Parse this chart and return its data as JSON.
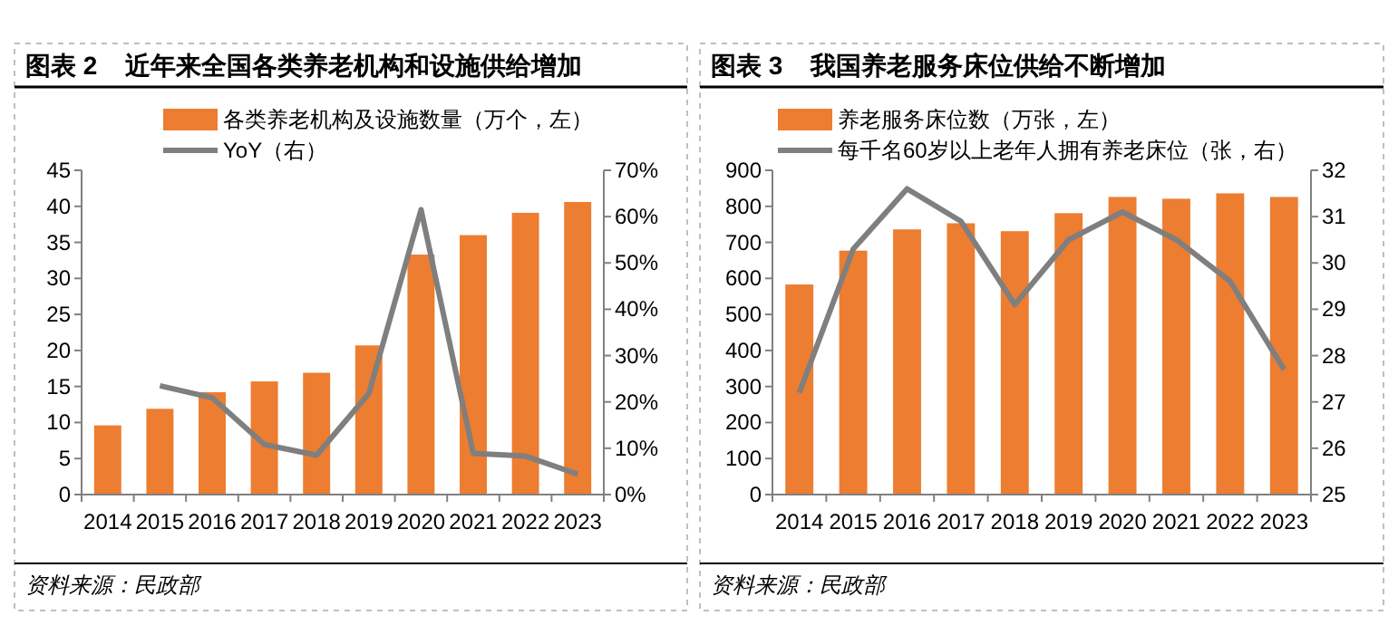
{
  "chart_data": [
    {
      "type": "bar",
      "title": "图表 2    近年来全国各类养老机构和设施供给增加",
      "categories": [
        "2014",
        "2015",
        "2016",
        "2017",
        "2018",
        "2019",
        "2020",
        "2021",
        "2022",
        "2023"
      ],
      "series": [
        {
          "name": "各类养老机构及设施数量（万个，左）",
          "color": "#ed7d31",
          "values": [
            9.6,
            11.9,
            14.2,
            15.7,
            16.9,
            20.7,
            33.3,
            36.0,
            39.1,
            40.6
          ]
        },
        {
          "name": "YoY（右）",
          "type": "line",
          "axis": "y2",
          "color": "#7f7f7f",
          "values": [
            null,
            23.5,
            20.9,
            10.8,
            8.5,
            21.8,
            61.5,
            8.9,
            8.3,
            4.4
          ]
        }
      ],
      "ylim": [
        0,
        45
      ],
      "yticks": [
        0,
        5,
        10,
        15,
        20,
        25,
        30,
        35,
        40,
        45
      ],
      "y2lim": [
        0,
        70
      ],
      "y2ticks": [
        {
          "value": 0,
          "label": "0%"
        },
        {
          "value": 10,
          "label": "10%"
        },
        {
          "value": 20,
          "label": "20%"
        },
        {
          "value": 30,
          "label": "30%"
        },
        {
          "value": 40,
          "label": "40%"
        },
        {
          "value": 50,
          "label": "50%"
        },
        {
          "value": 60,
          "label": "60%"
        },
        {
          "value": 70,
          "label": "70%"
        }
      ],
      "legend": "top",
      "grid": false,
      "marker": "none",
      "line_style": "solid",
      "annotations": [
        "资料来源：民政部"
      ]
    },
    {
      "type": "bar",
      "title": "图表 3    我国养老服务床位供给不断增加",
      "categories": [
        "2014",
        "2015",
        "2016",
        "2017",
        "2018",
        "2019",
        "2020",
        "2021",
        "2022",
        "2023"
      ],
      "series": [
        {
          "name": "养老服务床位数（万张，左）",
          "color": "#ed7d31",
          "values": [
            583,
            677,
            736,
            753,
            731,
            781,
            826,
            821,
            836,
            826
          ]
        },
        {
          "name": "每千名60岁以上老年人拥有养老床位（张，右）",
          "type": "line",
          "axis": "y2",
          "color": "#7f7f7f",
          "values": [
            27.2,
            30.3,
            31.6,
            30.9,
            29.1,
            30.5,
            31.1,
            30.5,
            29.6,
            27.7
          ]
        }
      ],
      "ylim": [
        0,
        900
      ],
      "yticks": [
        0,
        100,
        200,
        300,
        400,
        500,
        600,
        700,
        800,
        900
      ],
      "y2lim": [
        25,
        32
      ],
      "y2ticks": [
        25,
        26,
        27,
        28,
        29,
        30,
        31,
        32
      ],
      "legend": "top",
      "grid": false,
      "marker": "none",
      "line_style": "solid",
      "annotations": [
        "资料来源：民政部"
      ]
    }
  ]
}
